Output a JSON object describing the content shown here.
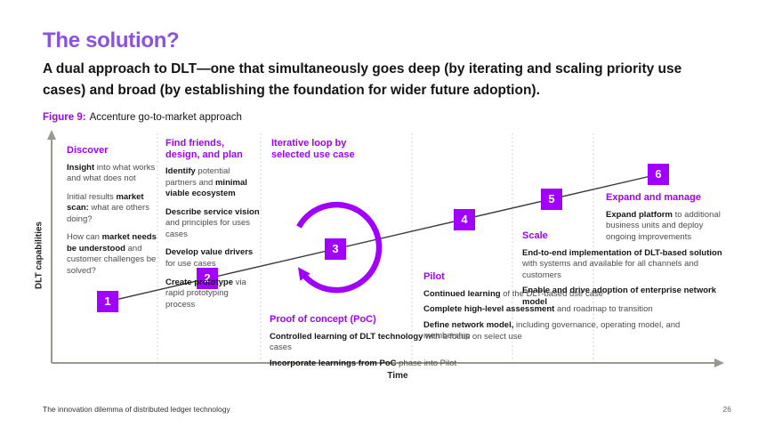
{
  "colors": {
    "accent_purple": "#A100FF",
    "title_purple": "#8952E0",
    "axis_gray": "#98988C",
    "body_gray": "#4D4D4D"
  },
  "header": {
    "title": "The solution?",
    "subtitle": "A dual approach to DLT—one that simultaneously goes deep (by iterating and scaling priority use cases) and broad (by establishing the foundation for wider future adoption).",
    "figure_label": "Figure 9:",
    "figure_caption": "Accenture go-to-market approach"
  },
  "axes": {
    "y_label": "DLT capabilities",
    "x_label": "Time"
  },
  "markers": [
    {
      "label": "1"
    },
    {
      "label": "2"
    },
    {
      "label": "3"
    },
    {
      "label": "4"
    },
    {
      "label": "5"
    },
    {
      "label": "6"
    }
  ],
  "sections": [
    {
      "title": "Discover",
      "items": [
        [
          {
            "t": "Insight",
            "b": 1
          },
          {
            "t": " into what works and what does not"
          }
        ],
        [
          {
            "t": "Initial results "
          },
          {
            "t": "market scan:",
            "b": 1
          },
          {
            "t": " what are others doing?"
          }
        ],
        [
          {
            "t": "How can "
          },
          {
            "t": "market needs be understood",
            "b": 1
          },
          {
            "t": " and customer challenges be solved?"
          }
        ]
      ]
    },
    {
      "title": "Find friends, design, and plan",
      "items": [
        [
          {
            "t": "Identify",
            "b": 1
          },
          {
            "t": " potential partners and "
          },
          {
            "t": "minimal viable ecosystem",
            "b": 1
          }
        ],
        [
          {
            "t": "Describe service vision",
            "b": 1
          },
          {
            "t": " and principles for uses cases"
          }
        ],
        [
          {
            "t": "Develop value drivers",
            "b": 1
          },
          {
            "t": " for use cases"
          }
        ],
        [
          {
            "t": "Create prototype",
            "b": 1
          },
          {
            "t": " via rapid prototyping process"
          }
        ]
      ]
    },
    {
      "title": "Iterative loop by selected use case",
      "items": []
    },
    {
      "title": "Proof of concept (PoC)",
      "items": [
        [
          {
            "t": "Controlled learning of DLT technology",
            "b": 1
          },
          {
            "t": " with a focus on select use cases"
          }
        ],
        [
          {
            "t": "Incorporate learnings from PoC",
            "b": 1
          },
          {
            "t": " phase into Pilot"
          }
        ]
      ]
    },
    {
      "title": "Pilot",
      "items": [
        [
          {
            "t": "Continued learning",
            "b": 1
          },
          {
            "t": " of the DLT-based use case"
          }
        ],
        [
          {
            "t": "Complete high-level assessment",
            "b": 1
          },
          {
            "t": " and roadmap to transition"
          }
        ],
        [
          {
            "t": "Define network model,",
            "b": 1
          },
          {
            "t": " including governance, operating model, and membership"
          }
        ]
      ]
    },
    {
      "title": "Scale",
      "items": [
        [
          {
            "t": "End-to-end implementation of DLT-based solution",
            "b": 1
          },
          {
            "t": " with systems and available for all channels and customers"
          }
        ],
        [
          {
            "t": "Enable and drive adoption of enterprise network model",
            "b": 1
          }
        ]
      ]
    },
    {
      "title": "Expand and manage",
      "items": [
        [
          {
            "t": "Expand platform",
            "b": 1
          },
          {
            "t": " to additional business units and deploy ongoing improvements"
          }
        ]
      ]
    }
  ],
  "footer": {
    "left": "The innovation dilemma of distributed ledger technology",
    "page_number": "26"
  }
}
